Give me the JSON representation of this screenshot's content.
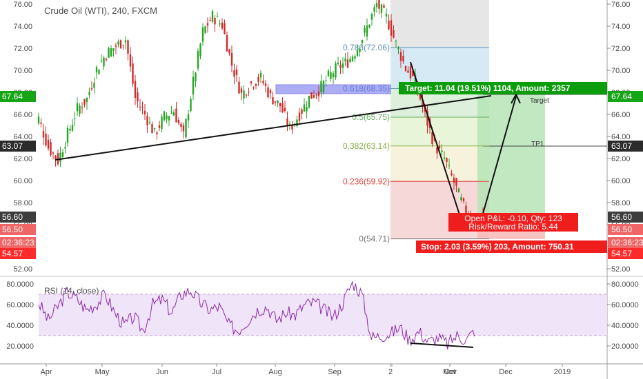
{
  "chart_data": [
    {
      "type": "candlestick",
      "title": "Crude Oil (WTI), 240, FXCM",
      "ylim": [
        51.5,
        76.3
      ],
      "y_ticks": [
        52.0,
        54.0,
        56.0,
        58.0,
        60.0,
        62.0,
        64.0,
        66.0,
        68.0,
        70.0,
        72.0,
        74.0,
        76.0
      ],
      "x_ticks": [
        "Apr",
        "May",
        "Jun",
        "Jul",
        "Aug",
        "Sep",
        "2",
        "Oct",
        "Nov",
        "Dec",
        "2019"
      ],
      "close_path": [
        [
          "Apr",
          65.6
        ],
        [
          "",
          63.0
        ],
        [
          "",
          61.8
        ],
        [
          "",
          64.2
        ],
        [
          "",
          66.5
        ],
        [
          "",
          67.4
        ],
        [
          "May",
          70.1
        ],
        [
          "",
          71.5
        ],
        [
          "",
          72.2
        ],
        [
          "",
          72.8
        ],
        [
          "",
          67.5
        ],
        [
          "",
          66.0
        ],
        [
          "Jun",
          64.2
        ],
        [
          "",
          65.8
        ],
        [
          "",
          66.3
        ],
        [
          "",
          64.0
        ],
        [
          "",
          68.9
        ],
        [
          "",
          73.5
        ],
        [
          "Jul",
          74.9
        ],
        [
          "",
          74.1
        ],
        [
          "",
          70.5
        ],
        [
          "",
          67.8
        ],
        [
          "",
          68.8
        ],
        [
          "",
          69.3
        ],
        [
          "Aug",
          67.6
        ],
        [
          "",
          66.8
        ],
        [
          "",
          64.7
        ],
        [
          "",
          66.0
        ],
        [
          "",
          67.5
        ],
        [
          "",
          68.2
        ],
        [
          "Sep",
          69.4
        ],
        [
          "",
          70.3
        ],
        [
          "",
          70.8
        ],
        [
          "",
          72.0
        ],
        [
          "",
          73.9
        ],
        [
          "2",
          76.0
        ],
        [
          "",
          74.8
        ],
        [
          "",
          72.4
        ],
        [
          "Oct",
          70.2
        ],
        [
          "",
          69.0
        ],
        [
          "",
          65.9
        ],
        [
          "",
          63.2
        ],
        [
          "",
          62.0
        ],
        [
          "Nov",
          59.8
        ],
        [
          "",
          57.6
        ],
        [
          "",
          55.9
        ],
        [
          "",
          56.6
        ]
      ],
      "price_labels": [
        {
          "value": "67.64",
          "color": "#16a516"
        },
        {
          "value": "63.07",
          "color": "#2b2b2b"
        },
        {
          "value": "56.60",
          "color": "#3d3d3d"
        },
        {
          "value": "56.50",
          "color": "#f06666"
        },
        {
          "value": "02:36:23",
          "color": "#f06666"
        },
        {
          "value": "54.57",
          "color": "#ff2a2a"
        }
      ],
      "fib_levels": [
        {
          "label": "0.786(72.06)",
          "value": 72.06,
          "color": "#5f8fb8"
        },
        {
          "label": "0.618(68.35)",
          "value": 68.35,
          "color": "#5f8fb8"
        },
        {
          "label": "0.5(65.75)",
          "value": 65.75,
          "color": "#62b062"
        },
        {
          "label": "0.382(63.14)",
          "value": 63.14,
          "color": "#8ab04a"
        },
        {
          "label": "0.236(59.92)",
          "value": 59.92,
          "color": "#e0453a"
        },
        {
          "label": "0(54.71)",
          "value": 54.71,
          "color": "#777777"
        }
      ],
      "annotations": {
        "target_text": "Target: 11.04 (19.51%) 1104, Amount: 2357",
        "stop_text": "Stop: 2.03 (3.59%) 203, Amount: 750.31",
        "pnl_text": "Open P&L: -0.10, Qty: 123",
        "rr_text": "Risk/Reward Ratio: 5.44",
        "target_label": "Target",
        "tp1_label": "TP1"
      }
    },
    {
      "type": "line",
      "title": "RSI (14, close)",
      "ylim": [
        10,
        85
      ],
      "y_ticks": [
        20.0,
        40.0,
        60.0,
        80.0
      ],
      "band": [
        30,
        70
      ],
      "series": [
        {
          "values": [
            62,
            45,
            58,
            72,
            66,
            55,
            60,
            70,
            52,
            40,
            48,
            35,
            60,
            65,
            52,
            70,
            74,
            62,
            55,
            58,
            40,
            35,
            45,
            55,
            58,
            45,
            52,
            50,
            60,
            62,
            55,
            48,
            62,
            82,
            70,
            28,
            30,
            32,
            38,
            26,
            34,
            24,
            28,
            22,
            30,
            26,
            37
          ]
        }
      ]
    }
  ],
  "y_ticks_text": [
    "52.00",
    "54.00",
    "56.00",
    "58.00",
    "60.00",
    "62.00",
    "64.00",
    "66.00",
    "68.00",
    "70.00",
    "72.00",
    "74.00",
    "76.00"
  ],
  "rsi_ticks_text": [
    "20.0000",
    "40.0000",
    "60.0000",
    "80.0000"
  ]
}
